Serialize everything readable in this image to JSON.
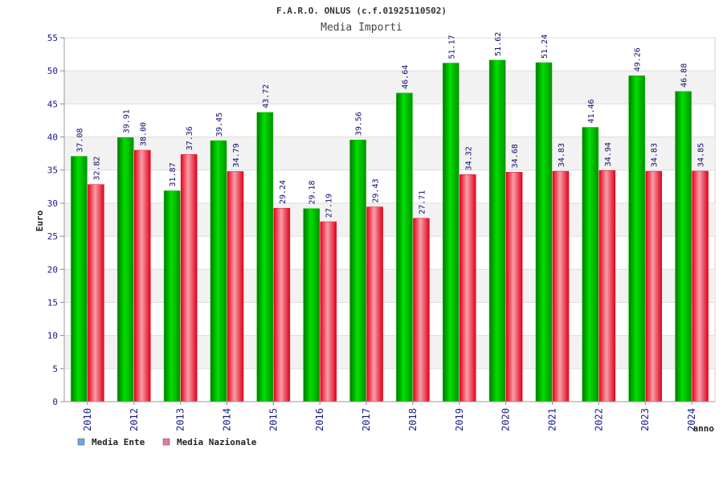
{
  "chart_data": {
    "type": "bar",
    "title": "F.A.R.O. ONLUS (c.f.01925110502)",
    "subtitle": "Media Importi",
    "xlabel": "anno",
    "ylabel": "Euro",
    "ylim": [
      0,
      55
    ],
    "yticks": [
      0,
      5,
      10,
      15,
      20,
      25,
      30,
      35,
      40,
      45,
      50,
      55
    ],
    "grid": true,
    "legend_position": "bottom-left",
    "categories": [
      "2010",
      "2012",
      "2013",
      "2014",
      "2015",
      "2016",
      "2017",
      "2018",
      "2019",
      "2020",
      "2021",
      "2022",
      "2023",
      "2024"
    ],
    "series": [
      {
        "name": "Media Ente",
        "color": "#00b800",
        "legend_color": "#6aa7e8",
        "values": [
          37.08,
          39.91,
          31.87,
          39.45,
          43.72,
          29.18,
          39.56,
          46.64,
          51.17,
          51.62,
          51.24,
          41.46,
          49.26,
          46.88
        ],
        "labels": [
          "37.08",
          "39.91",
          "31.87",
          "39.45",
          "43.72",
          "29.18",
          "39.56",
          "46.64",
          "51.17",
          "51.62",
          "51.24",
          "41.46",
          "49.26",
          "46.88"
        ]
      },
      {
        "name": "Media Nazionale",
        "color": "#e8001a",
        "legend_color": "#e07aa8",
        "values": [
          32.82,
          38.0,
          37.36,
          34.79,
          29.24,
          27.19,
          29.43,
          27.71,
          34.32,
          34.68,
          34.83,
          34.94,
          34.83,
          34.85
        ],
        "labels": [
          "32.82",
          "38.00",
          "37.36",
          "34.79",
          "29.24",
          "27.19",
          "29.43",
          "27.71",
          "34.32",
          "34.68",
          "34.83",
          "34.94",
          "34.83",
          "34.85"
        ]
      }
    ]
  }
}
